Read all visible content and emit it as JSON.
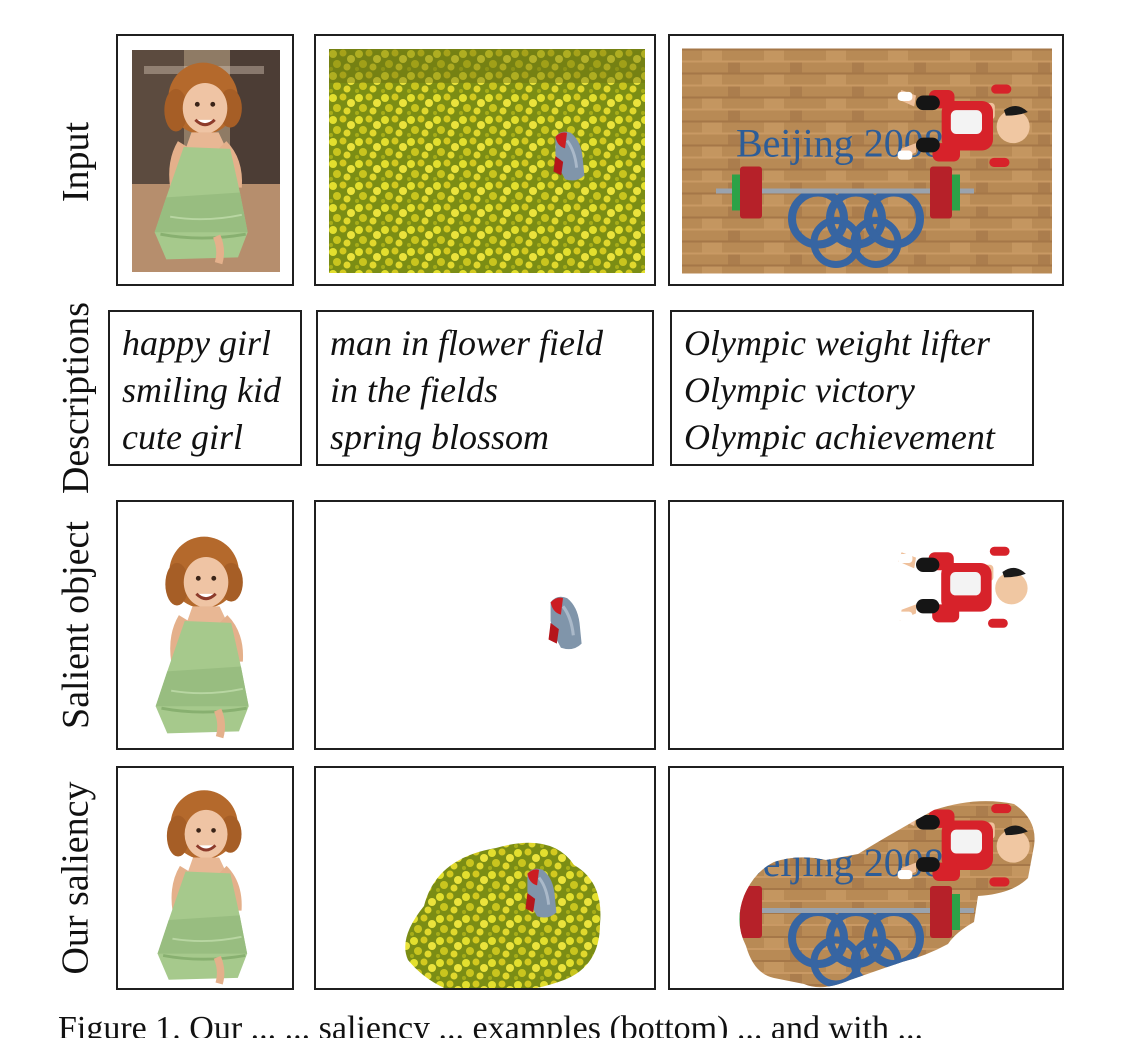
{
  "rows": {
    "input": "Input",
    "descriptions": "Descriptions",
    "salient_object": "Salient object",
    "our_saliency": "Our saliency"
  },
  "descriptions": {
    "girl": [
      "happy girl",
      "smiling kid",
      "cute girl"
    ],
    "field": [
      "man in flower field",
      "in the fields",
      "spring blossom"
    ],
    "olympic": [
      "Olympic weight lifter",
      "Olympic victory",
      "Olympic achievement"
    ]
  },
  "images": {
    "olympic_banner_text": "Beijing 2008"
  },
  "caption": "Figure 1. Our ... ... saliency ... examples (bottom) ... and with ..."
}
